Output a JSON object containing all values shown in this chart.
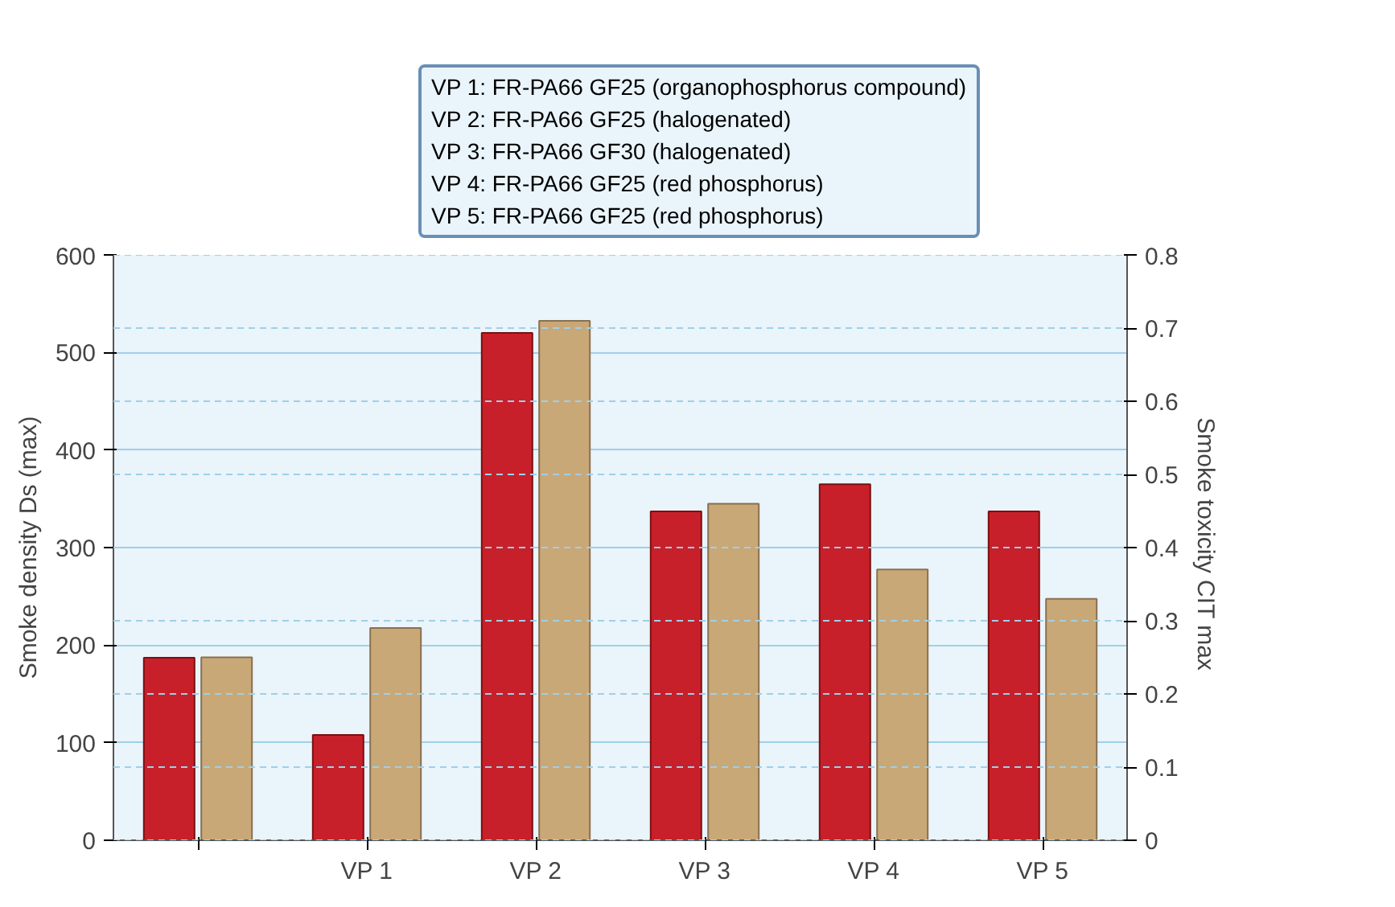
{
  "chart_data": {
    "type": "bar",
    "categories": [
      null,
      "VP 1",
      "VP 2",
      "VP 3",
      "VP 4",
      "VP 5"
    ],
    "ylabel": "Smoke density Ds (max)",
    "y2label": "Smoke toxicity CIT  max",
    "series": [
      {
        "color": "#c8202a",
        "values": [
          187,
          108,
          520,
          337,
          365,
          337
        ]
      },
      {
        "color": "#c9a877",
        "axis": "y2",
        "values": [
          0.25,
          0.29,
          0.71,
          0.46,
          0.37,
          0.33
        ]
      }
    ],
    "ylim": [
      0,
      600
    ],
    "yticks": [
      0,
      100,
      200,
      300,
      400,
      500,
      600
    ],
    "y2lim": [
      0,
      0.8
    ],
    "y2ticks": [
      0,
      0.1,
      0.2,
      0.3,
      0.4,
      0.5,
      0.6,
      0.7,
      0.8
    ],
    "grid": true,
    "annotations": [
      "VP 1: FR-PA66 GF25 (organophosphorus compound)",
      "VP 2: FR-PA66 GF25 (halogenated)",
      "VP 3: FR-PA66 GF30 (halogenated)",
      "VP 4: FR-PA66 GF25 (red phosphorus)",
      "VP 5: FR-PA66 GF25 (red phosphorus)"
    ]
  }
}
